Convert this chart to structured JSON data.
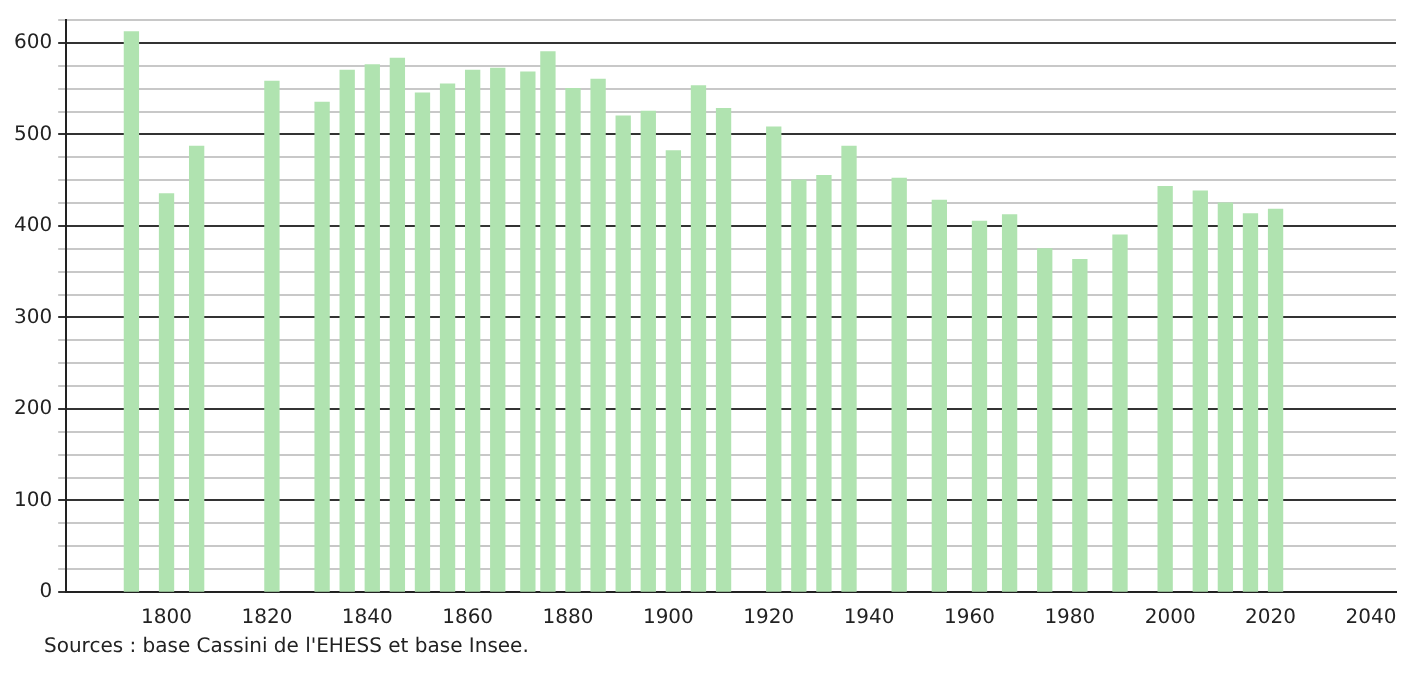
{
  "chart_data": {
    "type": "bar",
    "x": [
      1793,
      1800,
      1806,
      1821,
      1831,
      1836,
      1841,
      1846,
      1851,
      1856,
      1861,
      1866,
      1872,
      1876,
      1881,
      1886,
      1891,
      1896,
      1901,
      1906,
      1911,
      1921,
      1926,
      1931,
      1936,
      1946,
      1954,
      1962,
      1968,
      1975,
      1982,
      1990,
      1999,
      2006,
      2011,
      2016,
      2021
    ],
    "values": [
      612,
      435,
      487,
      558,
      535,
      570,
      576,
      583,
      545,
      555,
      570,
      572,
      568,
      590,
      550,
      560,
      520,
      525,
      482,
      553,
      528,
      508,
      450,
      455,
      487,
      452,
      428,
      405,
      412,
      375,
      363,
      390,
      443,
      438,
      425,
      413,
      418
    ],
    "color": "#b0e3b0",
    "xlim": [
      1780,
      2045
    ],
    "xticks": [
      1800,
      1820,
      1840,
      1860,
      1880,
      1900,
      1920,
      1940,
      1960,
      1980,
      2000,
      2020,
      2040
    ],
    "ylim": [
      0,
      625
    ],
    "yticks": [
      0,
      {
        "value": 25,
        "label": null
      },
      {
        "value": 50,
        "label": null
      },
      {
        "value": 75,
        "label": null
      },
      100,
      {
        "value": 125,
        "label": null
      },
      {
        "value": 150,
        "label": null
      },
      {
        "value": 175,
        "label": null
      },
      200,
      {
        "value": 225,
        "label": null
      },
      {
        "value": 250,
        "label": null
      },
      {
        "value": 275,
        "label": null
      },
      300,
      {
        "value": 325,
        "label": null
      },
      {
        "value": 350,
        "label": null
      },
      {
        "value": 375,
        "label": null
      },
      400,
      {
        "value": 425,
        "label": null
      },
      {
        "value": 450,
        "label": null
      },
      {
        "value": 475,
        "label": null
      },
      500,
      {
        "value": 525,
        "label": null
      },
      {
        "value": 550,
        "label": null
      },
      {
        "value": 575,
        "label": null
      },
      600,
      {
        "value": 625,
        "label": null
      }
    ],
    "grid": "y",
    "annotations": [
      "Sources : base Cassini de l'EHESS et base Insee."
    ]
  }
}
